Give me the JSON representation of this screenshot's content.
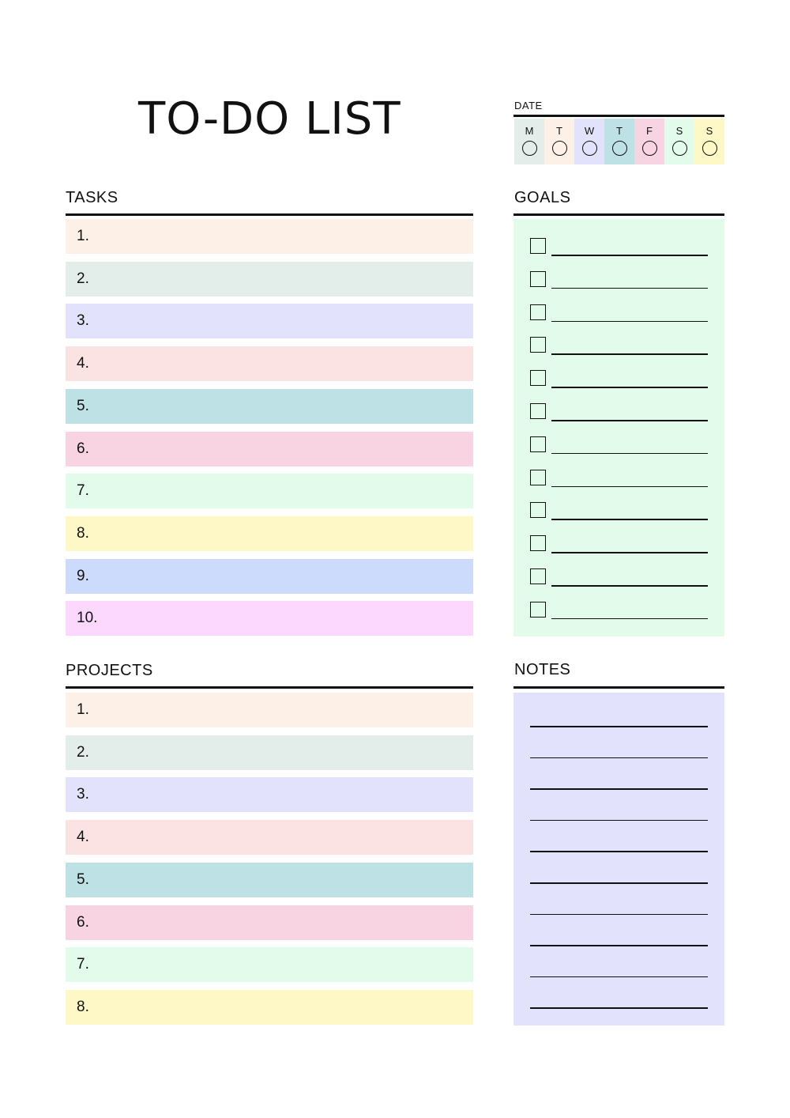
{
  "title": "TO-DO LIST",
  "date": {
    "label": "DATE",
    "days": [
      {
        "letter": "M",
        "color": "#E3EDE9"
      },
      {
        "letter": "T",
        "color": "#FDF0E6"
      },
      {
        "letter": "W",
        "color": "#E2E2FC"
      },
      {
        "letter": "T",
        "color": "#BDE1E5"
      },
      {
        "letter": "F",
        "color": "#F8D3E2"
      },
      {
        "letter": "S",
        "color": "#E2FBEA"
      },
      {
        "letter": "S",
        "color": "#FEF8C6"
      }
    ]
  },
  "tasks": {
    "label": "TASKS",
    "rows": [
      {
        "num": "1.",
        "color": "#FDF0E6"
      },
      {
        "num": "2.",
        "color": "#E3EDE9"
      },
      {
        "num": "3.",
        "color": "#E2E2FC"
      },
      {
        "num": "4.",
        "color": "#FCE3E3"
      },
      {
        "num": "5.",
        "color": "#BDE1E5"
      },
      {
        "num": "6.",
        "color": "#F8D3E2"
      },
      {
        "num": "7.",
        "color": "#E2FBEA"
      },
      {
        "num": "8.",
        "color": "#FEF8C6"
      },
      {
        "num": "9.",
        "color": "#CCDAFB"
      },
      {
        "num": "10.",
        "color": "#FCD8FE"
      }
    ]
  },
  "goals": {
    "label": "GOALS",
    "color": "#E2FBEA",
    "count": 12
  },
  "projects": {
    "label": "PROJECTS",
    "rows": [
      {
        "num": "1.",
        "color": "#FDF0E6"
      },
      {
        "num": "2.",
        "color": "#E3EDE9"
      },
      {
        "num": "3.",
        "color": "#E2E2FC"
      },
      {
        "num": "4.",
        "color": "#FCE3E3"
      },
      {
        "num": "5.",
        "color": "#BDE1E5"
      },
      {
        "num": "6.",
        "color": "#F8D3E2"
      },
      {
        "num": "7.",
        "color": "#E2FBEA"
      },
      {
        "num": "8.",
        "color": "#FEF8C6"
      }
    ]
  },
  "notes": {
    "label": "NOTES",
    "color": "#E2E2FC",
    "count": 10
  }
}
